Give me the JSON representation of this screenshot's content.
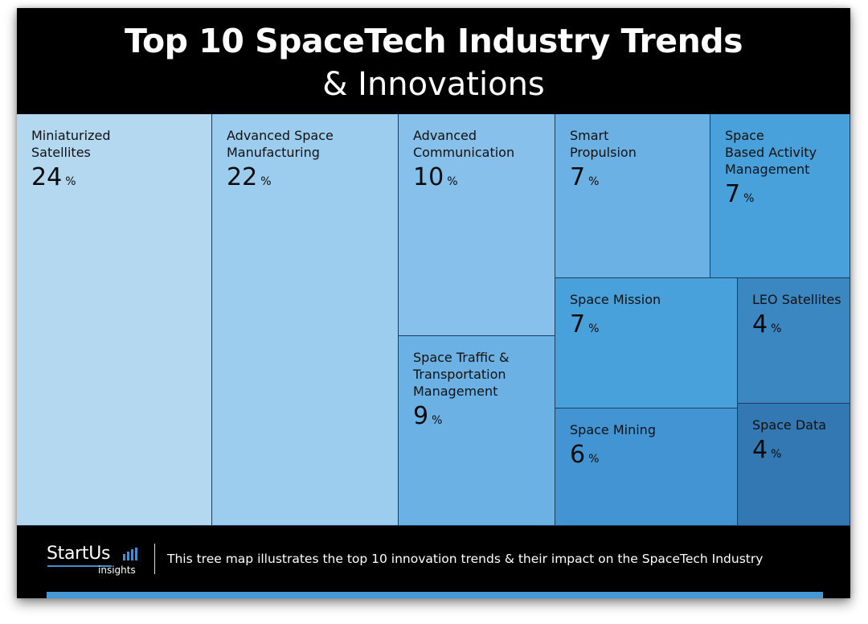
{
  "header": {
    "title": "Top 10 SpaceTech Industry Trends",
    "subtitle": "& Innovations"
  },
  "chart_data": {
    "type": "treemap",
    "title": "Top 10 SpaceTech Industry Trends & Innovations",
    "unit": "%",
    "items": [
      {
        "label": "Miniaturized\nSatellites",
        "name": "Miniaturized Satellites",
        "value": 24,
        "color": "#b5d8f1"
      },
      {
        "label": "Advanced Space\nManufacturing",
        "name": "Advanced Space Manufacturing",
        "value": 22,
        "color": "#9dcdee"
      },
      {
        "label": "Advanced\nCommunication",
        "name": "Advanced Communication",
        "value": 10,
        "color": "#86c0eb"
      },
      {
        "label": "Space Traffic &\nTransportation\nManagement",
        "name": "Space Traffic & Transportation Management",
        "value": 9,
        "color": "#6cb1e3"
      },
      {
        "label": "Smart\nPropulsion",
        "name": "Smart Propulsion",
        "value": 7,
        "color": "#6cb1e3"
      },
      {
        "label": "Space\nBased Activity\nManagement",
        "name": "Space Based Activity Management",
        "value": 7,
        "color": "#48a1da"
      },
      {
        "label": "Space Mission",
        "name": "Space Mission",
        "value": 7,
        "color": "#48a1da"
      },
      {
        "label": "Space Mining",
        "name": "Space Mining",
        "value": 6,
        "color": "#4294d2"
      },
      {
        "label": "LEO Satellites",
        "name": "LEO Satellites",
        "value": 4,
        "color": "#3b87c2"
      },
      {
        "label": "Space Data",
        "name": "Space Data",
        "value": 4,
        "color": "#3378b2"
      }
    ]
  },
  "footer": {
    "logo_word": "StartUs",
    "logo_sub": "insights",
    "caption": "This tree map illustrates the top 10 innovation trends & their impact on the SpaceTech Industry",
    "accent_color": "#4498d6"
  }
}
